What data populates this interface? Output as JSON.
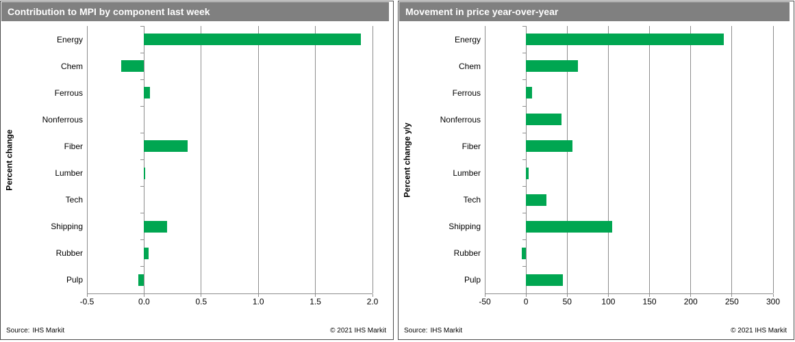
{
  "colors": {
    "bar_green": "#00A651",
    "titlebar_gray": "#808080",
    "gridline_gray": "#8C8C8C",
    "title_text": "#FFFFFF",
    "body_text": "#000000"
  },
  "chart_data": [
    {
      "type": "bar",
      "orientation": "horizontal",
      "title": "Contribution to MPI by component last week",
      "ylabel": "Percent change",
      "xlabel": "",
      "categories": [
        "Energy",
        "Chem",
        "Ferrous",
        "Nonferrous",
        "Fiber",
        "Lumber",
        "Tech",
        "Shipping",
        "Rubber",
        "Pulp"
      ],
      "values": [
        1.9,
        -0.2,
        0.05,
        0,
        0.38,
        0.01,
        0,
        0.2,
        0.04,
        -0.05
      ],
      "xlim": [
        -0.5,
        2.0
      ],
      "xticks": [
        -0.5,
        0,
        0.5,
        1.0,
        1.5,
        2.0
      ],
      "xtick_labels": [
        "-0.5",
        "0.0",
        "0.5",
        "1.0",
        "1.5",
        "2.0"
      ],
      "grid": "vertical",
      "legend": "none",
      "bar_color": "#00A651",
      "source_label": "Source:",
      "source_name": "IHS Markit",
      "copyright": "© 2021  IHS Markit"
    },
    {
      "type": "bar",
      "orientation": "horizontal",
      "title": "Movement in price year-over-year",
      "ylabel": "Percent change y/y",
      "xlabel": "",
      "categories": [
        "Energy",
        "Chem",
        "Ferrous",
        "Nonferrous",
        "Fiber",
        "Lumber",
        "Tech",
        "Shipping",
        "Rubber",
        "Pulp"
      ],
      "values": [
        240,
        63,
        7,
        43,
        56,
        3,
        25,
        105,
        -5,
        45
      ],
      "xlim": [
        -50,
        300
      ],
      "xticks": [
        -50,
        0,
        50,
        100,
        150,
        200,
        250,
        300
      ],
      "xtick_labels": [
        "-50",
        "0",
        "50",
        "100",
        "150",
        "200",
        "250",
        "300"
      ],
      "grid": "vertical",
      "legend": "none",
      "bar_color": "#00A651",
      "source_label": "Source:",
      "source_name": "IHS Markit",
      "copyright": "© 2021  IHS Markit"
    }
  ]
}
